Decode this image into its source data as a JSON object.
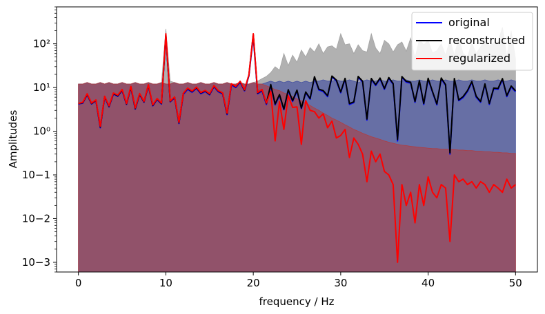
{
  "chart_data": {
    "type": "line",
    "xlabel": "frequency / Hz",
    "ylabel": "Amplitudes",
    "xlim": [
      -2.5,
      52.5
    ],
    "ylim": [
      0.0006,
      700
    ],
    "yscale": "log",
    "legend_position": "top-right",
    "x_ticks": [
      0,
      10,
      20,
      30,
      40,
      50
    ],
    "x_tick_labels": [
      "0",
      "10",
      "20",
      "30",
      "40",
      "50"
    ],
    "y_ticks": [
      0.001,
      0.01,
      0.1,
      1,
      10,
      100
    ],
    "y_tick_labels": [
      "10−3",
      "10−2",
      "10−1",
      "10⁰",
      "10¹",
      "10²"
    ],
    "x": [
      0.0,
      0.5,
      1.0,
      1.5,
      2.0,
      2.5,
      3.0,
      3.5,
      4.0,
      4.5,
      5.0,
      5.5,
      6.0,
      6.5,
      7.0,
      7.5,
      8.0,
      8.5,
      9.0,
      9.5,
      10.0,
      10.5,
      11.0,
      11.5,
      12.0,
      12.5,
      13.0,
      13.5,
      14.0,
      14.5,
      15.0,
      15.5,
      16.0,
      16.5,
      17.0,
      17.5,
      18.0,
      18.5,
      19.0,
      19.5,
      20.0,
      20.5,
      21.0,
      21.5,
      22.0,
      22.5,
      23.0,
      23.5,
      24.0,
      24.5,
      25.0,
      25.5,
      26.0,
      26.5,
      27.0,
      27.5,
      28.0,
      28.5,
      29.0,
      29.5,
      30.0,
      30.5,
      31.0,
      31.5,
      32.0,
      32.5,
      33.0,
      33.5,
      34.0,
      34.5,
      35.0,
      35.5,
      36.0,
      36.5,
      37.0,
      37.5,
      38.0,
      38.5,
      39.0,
      39.5,
      40.0,
      40.5,
      41.0,
      41.5,
      42.0,
      42.5,
      43.0,
      43.5,
      44.0,
      44.5,
      45.0,
      45.5,
      46.0,
      46.5,
      47.0,
      47.5,
      48.0,
      48.5,
      49.0,
      49.5,
      50.0
    ],
    "series": [
      {
        "name": "original",
        "color": "#0000ff",
        "band": {
          "color": "#3f4c9e",
          "opacity": 0.65,
          "upper": [
            12,
            12,
            13,
            12,
            12,
            13,
            12,
            13,
            12,
            12,
            13,
            12,
            12,
            13,
            12,
            12,
            13,
            12,
            12,
            13,
            12,
            12,
            13,
            12,
            12,
            13,
            12,
            12,
            13,
            12,
            12,
            13,
            12,
            12,
            13,
            12,
            12,
            13,
            12,
            12,
            13,
            12,
            12,
            13,
            14,
            13,
            14,
            13,
            14,
            13,
            14,
            13,
            14,
            13,
            14,
            14,
            15,
            14,
            14,
            15,
            14,
            14,
            15,
            14,
            13,
            14,
            15,
            14,
            14,
            15,
            14,
            14,
            15,
            14,
            14,
            15,
            14,
            14,
            15,
            14,
            14,
            15,
            14,
            14,
            15,
            14,
            14,
            15,
            14,
            14,
            15,
            14,
            14,
            15,
            14,
            14,
            15,
            14,
            14,
            15,
            14
          ],
          "lower": [
            0.0006,
            0.0006,
            0.0006,
            0.0006,
            0.0006,
            0.0006,
            0.0006,
            0.0006,
            0.0006,
            0.0006,
            0.0006,
            0.0006,
            0.0006,
            0.0006,
            0.0006,
            0.0006,
            0.0006,
            0.0006,
            0.0006,
            0.0006,
            0.0006,
            0.0006,
            0.0006,
            0.0006,
            0.0006,
            0.0006,
            0.0006,
            0.0006,
            0.0006,
            0.0006,
            0.0006,
            0.0006,
            0.0006,
            0.0006,
            0.0006,
            0.0006,
            0.0006,
            0.0006,
            0.0006,
            0.0006,
            0.0006,
            0.0006,
            0.0006,
            0.0006,
            0.0006,
            0.0006,
            0.0006,
            0.0006,
            0.0006,
            0.0006,
            0.0006,
            0.0006,
            0.0006,
            0.0006,
            0.0006,
            0.0006,
            0.0006,
            0.0006,
            0.0006,
            0.0006,
            0.0006,
            0.0006,
            0.0006,
            0.0006,
            0.0006,
            0.0006,
            0.0006,
            0.0006,
            0.0006,
            0.0006,
            0.0006,
            0.0006,
            0.0006,
            0.0006,
            0.0006,
            0.0006,
            0.0006,
            0.0006,
            0.0006,
            0.0006,
            0.0006,
            0.0006,
            0.0006,
            0.0006,
            0.0006,
            0.0006,
            0.0006,
            0.0006,
            0.0006,
            0.0006,
            0.0006,
            0.0006,
            0.0006,
            0.0006,
            0.0006,
            0.0006,
            0.0006,
            0.0006,
            0.0006,
            0.0006,
            0.0006
          ]
        },
        "values": [
          4.2,
          4.4,
          6.8,
          4.2,
          5.0,
          1.2,
          6.0,
          3.6,
          7.1,
          6.3,
          8.5,
          4.1,
          10.0,
          3.2,
          6.9,
          4.6,
          11.0,
          3.8,
          5.3,
          4.2,
          150,
          4.7,
          5.8,
          1.5,
          7.0,
          9.1,
          7.8,
          9.6,
          7.2,
          8.1,
          6.8,
          10.4,
          8.0,
          7.1,
          2.4,
          11.5,
          10.0,
          13.1,
          8.4,
          18.5,
          145,
          7.2,
          8.4,
          4.1,
          11.2,
          4.0,
          6.6,
          3.1,
          8.5,
          4.8,
          8.3,
          3.3,
          7.6,
          5.4,
          17.0,
          8.8,
          8.1,
          6.2,
          17.5,
          14.2,
          7.6,
          15.5,
          4.1,
          4.5,
          17.1,
          13.4,
          1.8,
          15.4,
          11.1,
          15.8,
          9.1,
          16.2,
          11.8,
          0.6,
          17.0,
          13.3,
          12.6,
          4.6,
          13.7,
          4.1,
          15.6,
          7.8,
          4.0,
          15.8,
          11.1,
          0.3,
          15.4,
          5.0,
          5.9,
          8.1,
          13.1,
          6.0,
          4.6,
          11.6,
          4.1,
          9.3,
          9.1,
          15.3,
          6.2,
          10.3,
          8.0
        ]
      },
      {
        "name": "reconstructed",
        "color": "#000000",
        "band": {
          "color": "#9e9e9e",
          "opacity": 0.8,
          "upper": [
            12,
            12,
            13,
            12,
            12,
            13,
            12,
            13,
            12,
            12,
            13,
            12,
            12,
            13,
            12,
            12,
            13,
            12,
            12,
            13,
            220,
            14,
            13,
            12,
            12,
            13,
            12,
            12,
            13,
            12,
            12,
            13,
            12,
            12,
            13,
            12,
            12,
            13,
            12,
            12,
            13,
            14,
            16,
            18,
            22,
            30,
            25,
            60,
            32,
            55,
            38,
            72,
            50,
            82,
            65,
            100,
            60,
            85,
            90,
            75,
            170,
            95,
            100,
            60,
            95,
            70,
            65,
            170,
            80,
            60,
            120,
            100,
            65,
            95,
            110,
            68,
            135,
            48,
            125,
            95,
            120,
            62,
            70,
            100,
            55,
            125,
            55,
            135,
            60,
            50,
            105,
            60,
            85,
            120,
            90,
            105,
            110,
            240,
            50,
            200,
            45
          ],
          "lower": [
            0.0006,
            0.0006,
            0.0006,
            0.0006,
            0.0006,
            0.0006,
            0.0006,
            0.0006,
            0.0006,
            0.0006,
            0.0006,
            0.0006,
            0.0006,
            0.0006,
            0.0006,
            0.0006,
            0.0006,
            0.0006,
            0.0006,
            0.0006,
            0.0006,
            0.0006,
            0.0006,
            0.0006,
            0.0006,
            0.0006,
            0.0006,
            0.0006,
            0.0006,
            0.0006,
            0.0006,
            0.0006,
            0.0006,
            0.0006,
            0.0006,
            0.0006,
            0.0006,
            0.0006,
            0.0006,
            0.0006,
            0.0006,
            0.0006,
            0.0006,
            0.0006,
            0.0006,
            0.0006,
            0.0006,
            0.0006,
            0.0006,
            0.0006,
            0.0006,
            0.0006,
            0.0006,
            0.0006,
            0.0006,
            0.0006,
            0.0006,
            0.0006,
            0.0006,
            0.0006,
            0.0006,
            0.0006,
            0.0006,
            0.0006,
            0.0006,
            0.0006,
            0.0006,
            0.0006,
            0.0006,
            0.0006,
            0.0006,
            0.0006,
            0.0006,
            0.0006,
            0.0006,
            0.0006,
            0.0006,
            0.0006,
            0.0006,
            0.0006,
            0.0006,
            0.0006,
            0.0006,
            0.0006,
            0.0006,
            0.0006,
            0.0006,
            0.0006,
            0.0006,
            0.0006,
            0.0006,
            0.0006,
            0.0006,
            0.0006,
            0.0006,
            0.0006,
            0.0006,
            0.0006,
            0.0006,
            0.0006,
            0.0006
          ]
        },
        "values": [
          4.3,
          4.5,
          7.0,
          4.3,
          5.1,
          1.25,
          6.2,
          3.7,
          7.3,
          6.5,
          8.8,
          4.2,
          10.3,
          3.3,
          7.1,
          4.7,
          11.3,
          3.9,
          5.5,
          4.3,
          160,
          4.8,
          6.0,
          1.55,
          7.3,
          9.5,
          8.1,
          10.0,
          7.5,
          8.4,
          7.0,
          10.8,
          8.3,
          7.4,
          2.5,
          12.0,
          10.4,
          13.6,
          8.7,
          19.2,
          165,
          7.5,
          8.8,
          4.3,
          11.7,
          4.2,
          6.9,
          3.2,
          8.9,
          5.0,
          8.7,
          3.4,
          7.9,
          5.6,
          17.7,
          9.2,
          8.5,
          6.5,
          18.3,
          14.8,
          7.9,
          16.2,
          4.3,
          4.7,
          17.9,
          14.0,
          1.9,
          16.1,
          11.6,
          16.5,
          9.5,
          16.9,
          12.3,
          0.65,
          17.8,
          13.9,
          13.2,
          4.8,
          14.3,
          4.3,
          16.3,
          8.1,
          4.2,
          16.5,
          11.6,
          0.32,
          16.1,
          5.2,
          6.2,
          8.5,
          13.7,
          6.3,
          4.8,
          12.1,
          4.3,
          9.7,
          9.5,
          16.0,
          6.5,
          10.8,
          8.4
        ]
      },
      {
        "name": "regularized",
        "color": "#ff0000",
        "band": {
          "color": "#b53a3a",
          "opacity": 0.55,
          "upper": [
            12,
            12,
            13,
            12,
            12,
            13,
            12,
            13,
            12,
            12,
            13,
            12,
            12,
            13,
            12,
            12,
            13,
            12,
            12,
            13,
            12,
            12,
            13,
            12,
            12,
            13,
            12,
            12,
            13,
            12,
            12,
            13,
            12,
            12,
            13,
            12,
            12,
            13,
            12,
            12,
            13,
            12,
            12,
            11,
            10,
            9,
            8.5,
            7.5,
            7,
            6.2,
            5.5,
            5,
            4.4,
            3.9,
            3.4,
            3,
            2.6,
            2.3,
            2.0,
            1.8,
            1.6,
            1.4,
            1.25,
            1.1,
            1.0,
            0.9,
            0.82,
            0.75,
            0.7,
            0.65,
            0.6,
            0.56,
            0.53,
            0.5,
            0.48,
            0.47,
            0.45,
            0.44,
            0.43,
            0.42,
            0.41,
            0.4,
            0.4,
            0.39,
            0.39,
            0.38,
            0.38,
            0.37,
            0.37,
            0.36,
            0.36,
            0.35,
            0.35,
            0.34,
            0.34,
            0.33,
            0.33,
            0.32,
            0.32,
            0.31,
            0.31
          ],
          "lower": [
            0.0006,
            0.0006,
            0.0006,
            0.0006,
            0.0006,
            0.0006,
            0.0006,
            0.0006,
            0.0006,
            0.0006,
            0.0006,
            0.0006,
            0.0006,
            0.0006,
            0.0006,
            0.0006,
            0.0006,
            0.0006,
            0.0006,
            0.0006,
            0.0006,
            0.0006,
            0.0006,
            0.0006,
            0.0006,
            0.0006,
            0.0006,
            0.0006,
            0.0006,
            0.0006,
            0.0006,
            0.0006,
            0.0006,
            0.0006,
            0.0006,
            0.0006,
            0.0006,
            0.0006,
            0.0006,
            0.0006,
            0.0006,
            0.0006,
            0.0006,
            0.0006,
            0.0006,
            0.0006,
            0.0006,
            0.0006,
            0.0006,
            0.0006,
            0.0006,
            0.0006,
            0.0006,
            0.0006,
            0.0006,
            0.0006,
            0.0006,
            0.0006,
            0.0006,
            0.0006,
            0.0006,
            0.0006,
            0.0006,
            0.0006,
            0.0006,
            0.0006,
            0.0006,
            0.0006,
            0.0006,
            0.0006,
            0.0006,
            0.0006,
            0.0006,
            0.0006,
            0.0006,
            0.0006,
            0.0006,
            0.0006,
            0.0006,
            0.0006,
            0.0006,
            0.0006,
            0.0006,
            0.0006,
            0.0006,
            0.0006,
            0.0006,
            0.0006,
            0.0006,
            0.0006,
            0.0006,
            0.0006,
            0.0006,
            0.0006,
            0.0006,
            0.0006,
            0.0006,
            0.0006,
            0.0006,
            0.0006,
            0.0006
          ]
        },
        "values": [
          4.3,
          4.6,
          7.2,
          4.4,
          5.2,
          1.3,
          6.3,
          3.8,
          7.5,
          6.7,
          9.0,
          4.3,
          10.6,
          3.4,
          7.3,
          4.8,
          11.6,
          4.0,
          5.6,
          4.4,
          170,
          4.9,
          6.1,
          1.6,
          7.4,
          9.7,
          8.3,
          10.2,
          7.7,
          8.6,
          7.2,
          11.0,
          8.5,
          7.5,
          2.6,
          12.2,
          10.6,
          13.9,
          8.9,
          19.6,
          170,
          7.7,
          9.0,
          4.4,
          8.2,
          0.6,
          4.7,
          1.1,
          6.5,
          3.5,
          3.6,
          0.5,
          5.0,
          3.0,
          2.8,
          2.0,
          2.5,
          1.2,
          1.7,
          0.7,
          0.8,
          1.1,
          0.25,
          0.7,
          0.5,
          0.3,
          0.07,
          0.35,
          0.2,
          0.3,
          0.12,
          0.1,
          0.06,
          0.001,
          0.06,
          0.02,
          0.04,
          0.008,
          0.06,
          0.02,
          0.09,
          0.04,
          0.03,
          0.06,
          0.05,
          0.003,
          0.1,
          0.07,
          0.08,
          0.06,
          0.07,
          0.05,
          0.07,
          0.06,
          0.04,
          0.06,
          0.05,
          0.04,
          0.08,
          0.05,
          0.06
        ]
      }
    ]
  }
}
